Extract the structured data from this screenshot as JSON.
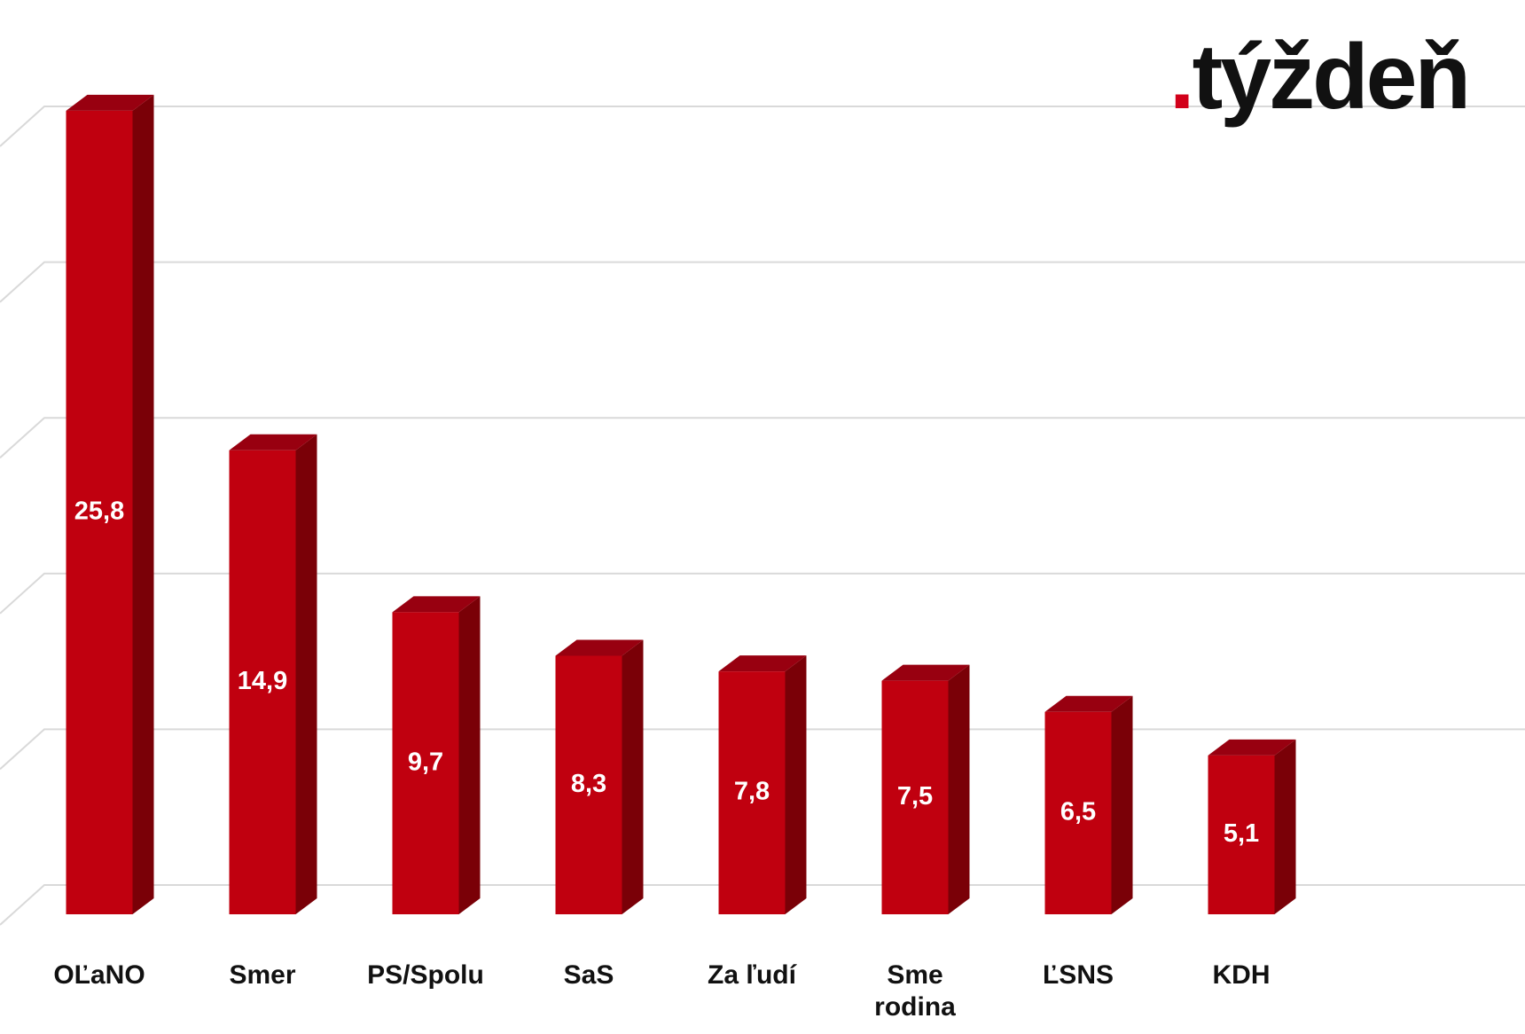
{
  "logo": {
    "dot": ".",
    "name": "týždeň"
  },
  "chart_data": {
    "type": "bar3d",
    "categories": [
      "OĽaNO",
      "Smer",
      "PS/Spolu",
      "SaS",
      "Za ľudí",
      "Sme rodina",
      "ĽSNS",
      "KDH"
    ],
    "values": [
      25.8,
      14.9,
      9.7,
      8.3,
      7.8,
      7.5,
      6.5,
      5.1
    ],
    "value_labels": [
      "25,8",
      "14,9",
      "9,7",
      "8,3",
      "7,8",
      "7,5",
      "6,5",
      "5,1"
    ],
    "color": "#c0000f",
    "ylim": [
      0,
      25
    ],
    "yticks": [
      0,
      5,
      10,
      15,
      20,
      25
    ],
    "grid": true
  }
}
